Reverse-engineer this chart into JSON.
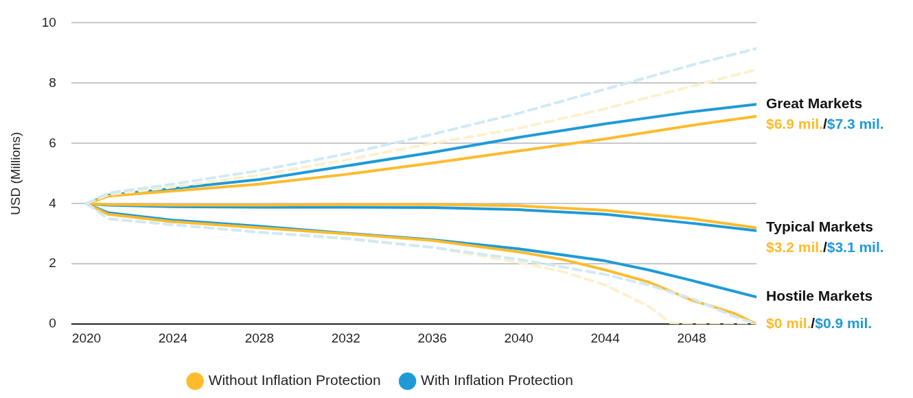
{
  "chart_data": {
    "type": "line",
    "ylabel": "USD (Millions)",
    "xlim": [
      2019.3,
      2051
    ],
    "xticks": [
      2020,
      2024,
      2028,
      2032,
      2036,
      2040,
      2044,
      2048
    ],
    "ylim": [
      0,
      10
    ],
    "yticks": [
      0,
      2,
      4,
      6,
      8,
      10
    ],
    "grid": "y",
    "legend": "bottom",
    "marker": "none",
    "series": [
      {
        "color": "#cfe9f7",
        "line_style": "dashed",
        "x": [
          2020,
          2021,
          2024,
          2028,
          2032,
          2036,
          2040,
          2044,
          2048,
          2051
        ],
        "values": [
          4,
          4.35,
          4.65,
          5.1,
          5.65,
          6.3,
          7.0,
          7.8,
          8.6,
          9.15
        ]
      },
      {
        "color": "#fdf0cc",
        "line_style": "dashed",
        "x": [
          2020,
          2021,
          2024,
          2028,
          2032,
          2036,
          2040,
          2044,
          2048,
          2051
        ],
        "values": [
          4,
          4.3,
          4.55,
          4.95,
          5.45,
          6.0,
          6.5,
          7.15,
          7.9,
          8.45
        ]
      },
      {
        "color": "#cfe9f7",
        "line_style": "dashed",
        "x": [
          2020,
          2021,
          2024,
          2028,
          2032,
          2036,
          2040,
          2044,
          2046,
          2048,
          2050,
          2051
        ],
        "values": [
          4,
          3.5,
          3.3,
          3.05,
          2.85,
          2.55,
          2.15,
          1.65,
          1.3,
          0.85,
          0.25,
          0
        ]
      },
      {
        "color": "#fdf0cc",
        "line_style": "dashed",
        "x": [
          2020,
          2021,
          2024,
          2028,
          2032,
          2036,
          2040,
          2042,
          2044,
          2046,
          2047,
          2048,
          2051
        ],
        "values": [
          4,
          3.5,
          3.3,
          3.05,
          2.83,
          2.55,
          2.05,
          1.75,
          1.3,
          0.6,
          0.05,
          0,
          0
        ]
      },
      {
        "name": "Without Inflation Protection",
        "color": "#fdbb2d",
        "line_style": "solid",
        "x": [
          2020,
          2021,
          2024,
          2028,
          2032,
          2036,
          2040,
          2044,
          2048,
          2051
        ],
        "values": [
          4,
          4.25,
          4.42,
          4.65,
          4.97,
          5.35,
          5.75,
          6.15,
          6.6,
          6.9
        ]
      },
      {
        "name": "With Inflation Protection",
        "color": "#1e9bd7",
        "line_style": "solid",
        "x": [
          2020,
          2021,
          2024,
          2028,
          2032,
          2036,
          2040,
          2044,
          2048,
          2051
        ],
        "values": [
          4,
          4.28,
          4.5,
          4.8,
          5.25,
          5.7,
          6.2,
          6.65,
          7.05,
          7.3
        ]
      },
      {
        "color": "#fdbb2d",
        "line_style": "solid",
        "x": [
          2020,
          2021,
          2024,
          2028,
          2032,
          2036,
          2040,
          2044,
          2048,
          2051
        ],
        "values": [
          4,
          3.97,
          3.95,
          3.95,
          3.97,
          3.97,
          3.93,
          3.78,
          3.5,
          3.2
        ]
      },
      {
        "color": "#1e9bd7",
        "line_style": "solid",
        "x": [
          2020,
          2021,
          2024,
          2028,
          2032,
          2036,
          2040,
          2044,
          2048,
          2051
        ],
        "values": [
          4,
          3.95,
          3.9,
          3.88,
          3.88,
          3.87,
          3.8,
          3.65,
          3.35,
          3.1
        ]
      },
      {
        "color": "#fdbb2d",
        "line_style": "solid",
        "x": [
          2020,
          2021,
          2024,
          2028,
          2032,
          2036,
          2040,
          2042,
          2044,
          2046,
          2048,
          2050,
          2051
        ],
        "values": [
          4,
          3.65,
          3.4,
          3.2,
          3.0,
          2.78,
          2.4,
          2.15,
          1.8,
          1.4,
          0.8,
          0.35,
          0
        ]
      },
      {
        "color": "#1e9bd7",
        "line_style": "solid",
        "x": [
          2020,
          2021,
          2024,
          2028,
          2032,
          2036,
          2040,
          2044,
          2046,
          2048,
          2051
        ],
        "values": [
          4,
          3.7,
          3.45,
          3.25,
          3.02,
          2.8,
          2.5,
          2.1,
          1.8,
          1.45,
          0.9
        ]
      }
    ],
    "annotations": [
      "Great Markets",
      "$6.9 mil.",
      "/",
      "$7.3 mil.",
      "Typical Markets",
      "$3.2 mil.",
      "/",
      "$3.1 mil.",
      "Hostile Markets",
      "$0 mil.",
      "/",
      "$0.9 mil."
    ]
  }
}
